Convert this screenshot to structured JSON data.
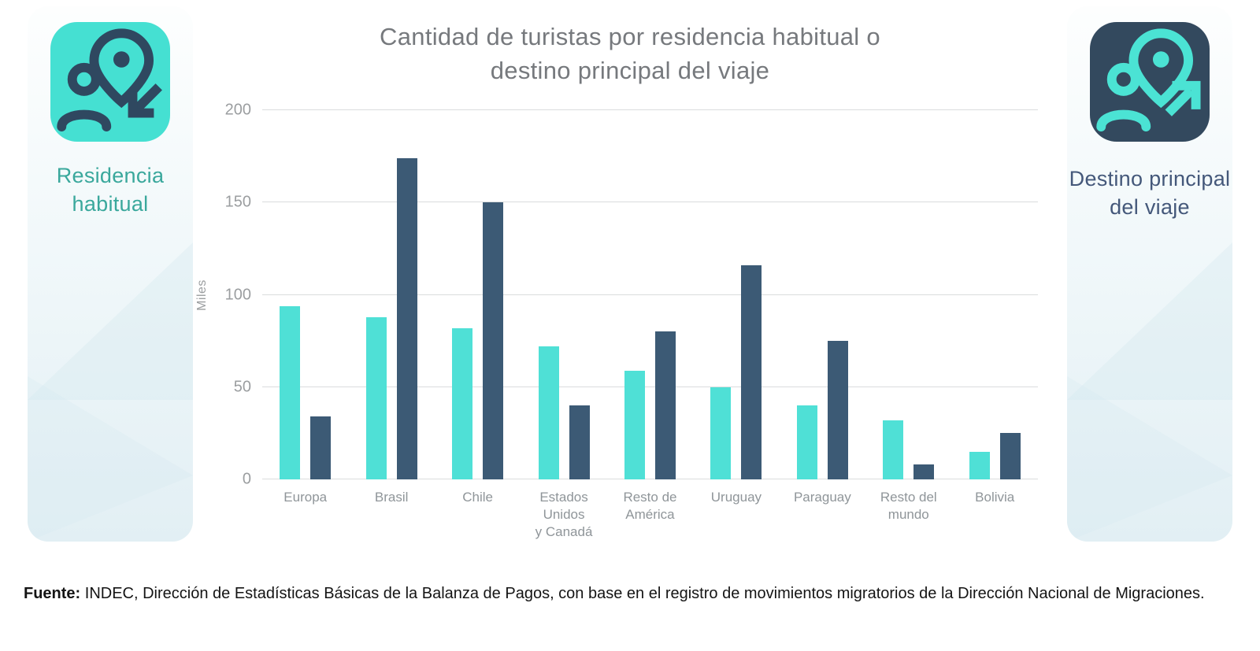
{
  "title": {
    "line1": "Cantidad de turistas por residencia habitual o",
    "line2": "destino principal del viaje"
  },
  "left_panel": {
    "label": "Residencia habitual",
    "icon": "person-location-pin-arrow-in-icon",
    "icon_bg": "#45E0D2",
    "icon_fg": "#2F4860",
    "label_color": "#3AA89C"
  },
  "right_panel": {
    "label": "Destino principal del viaje",
    "icon": "person-location-pin-arrow-out-icon",
    "icon_bg": "#33495E",
    "icon_fg": "#4BE3D4",
    "label_color": "#44587A"
  },
  "chart_data": {
    "type": "bar",
    "title": "Cantidad de turistas por residencia habitual o destino principal del viaje",
    "xlabel": "",
    "ylabel": "Miles",
    "ylim": [
      0,
      200
    ],
    "yticks": [
      0,
      50,
      100,
      150,
      200
    ],
    "grid": true,
    "legend_position": "side-panels",
    "categories": [
      "Europa",
      "Brasil",
      "Chile",
      "Estados Unidos y Canadá",
      "Resto de América",
      "Uruguay",
      "Paraguay",
      "Resto del mundo",
      "Bolivia"
    ],
    "categories_multiline": [
      "Europa",
      "Brasil",
      "Chile",
      "Estados\nUnidos\ny Canadá",
      "Resto de\nAmérica",
      "Uruguay",
      "Paraguay",
      "Resto del\nmundo",
      "Bolivia"
    ],
    "series": [
      {
        "name": "Residencia habitual",
        "color": "#4FE0D6",
        "values": [
          94,
          88,
          82,
          72,
          59,
          50,
          40,
          32,
          15
        ]
      },
      {
        "name": "Destino principal del viaje",
        "color": "#3C5A75",
        "values": [
          34,
          174,
          150,
          40,
          80,
          116,
          75,
          8,
          25
        ]
      }
    ]
  },
  "footer": {
    "bold_label": "Fuente:",
    "text": " INDEC, Dirección de Estadísticas Básicas de la Balanza de Pagos, con base en el registro de movimientos migratorios de la Dirección Nacional de Migraciones."
  }
}
